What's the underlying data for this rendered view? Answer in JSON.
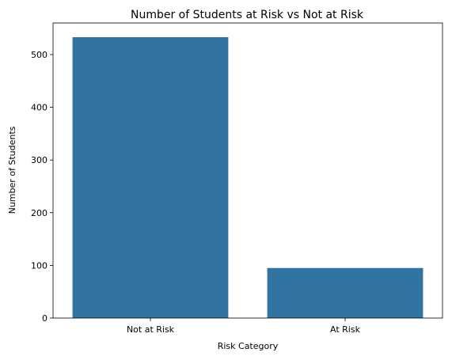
{
  "chart_data": {
    "type": "bar",
    "title": "Number of Students at Risk vs Not at Risk",
    "xlabel": "Risk Category",
    "ylabel": "Number of Students",
    "categories": [
      "Not at Risk",
      "At Risk"
    ],
    "values": [
      533,
      95
    ],
    "ylim": [
      0,
      560
    ],
    "yticks": [
      0,
      100,
      200,
      300,
      400,
      500
    ],
    "grid": false,
    "bar_color": "#3274a1"
  }
}
